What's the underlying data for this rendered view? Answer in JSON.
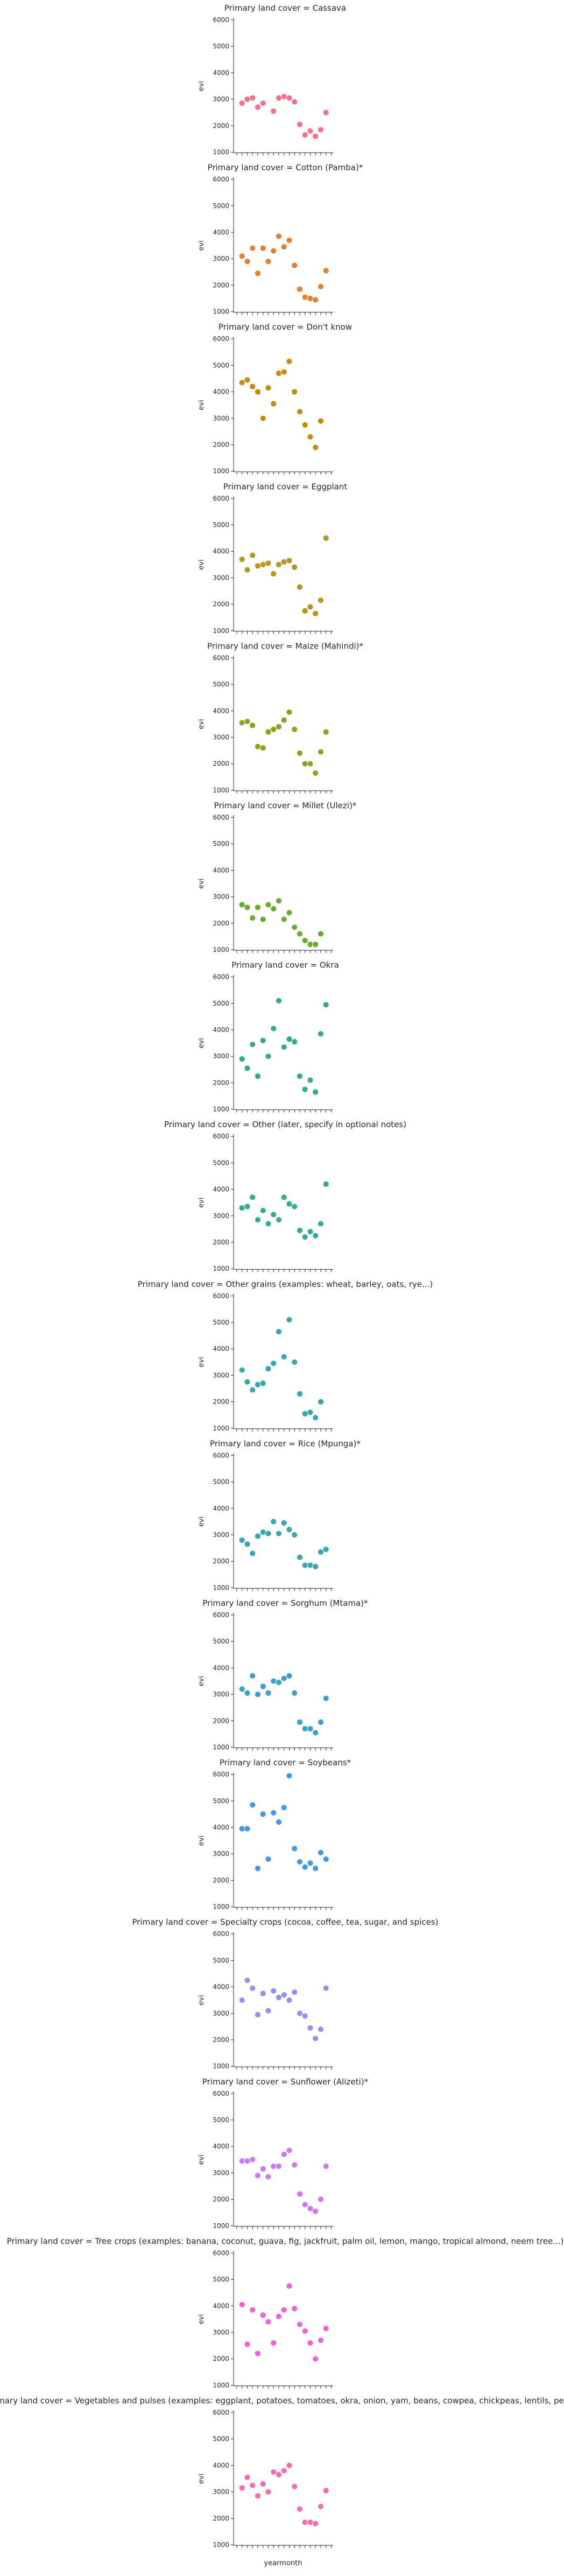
{
  "chart_data": {
    "type": "scatter",
    "facet_prefix": "Primary land cover = ",
    "xlabel": "yearmonth",
    "ylabel": "evi",
    "ylim": [
      1000,
      6000
    ],
    "yticks": [
      1000,
      2000,
      3000,
      4000,
      5000,
      6000
    ],
    "x_tick_count": 19,
    "x_tick_labels": "",
    "legend": "none",
    "grid": false,
    "panels": [
      {
        "category": "Cassava",
        "color": "#f77189",
        "x": [
          1,
          2,
          3,
          4,
          5,
          7,
          8,
          9,
          10,
          11,
          12,
          13,
          14,
          15,
          16,
          17
        ],
        "y": [
          2850,
          3000,
          3050,
          2700,
          2850,
          2550,
          3050,
          3100,
          3050,
          2900,
          2050,
          1650,
          1800,
          1600,
          1850,
          2500
        ]
      },
      {
        "category": "Cotton (Pamba)*",
        "color": "#e5802e",
        "x": [
          1,
          2,
          3,
          4,
          5,
          6,
          7,
          8,
          9,
          10,
          11,
          12,
          13,
          14,
          15,
          16,
          17
        ],
        "y": [
          3100,
          2900,
          3400,
          2450,
          3400,
          2900,
          3300,
          3850,
          3450,
          3700,
          2750,
          1850,
          1550,
          1500,
          1450,
          1950,
          2550
        ]
      },
      {
        "category": "Don't know",
        "color": "#c88a0f",
        "x": [
          1,
          2,
          3,
          4,
          5,
          6,
          7,
          8,
          9,
          10,
          11,
          12,
          13,
          14,
          15,
          16
        ],
        "y": [
          4350,
          4450,
          4200,
          4000,
          3000,
          4150,
          3550,
          4700,
          4750,
          5150,
          4000,
          3250,
          2750,
          2300,
          1900,
          2900
        ]
      },
      {
        "category": "Eggplant",
        "color": "#b5961e",
        "x": [
          1,
          2,
          3,
          4,
          5,
          6,
          7,
          8,
          9,
          10,
          11,
          12,
          13,
          14,
          15,
          16,
          17
        ],
        "y": [
          3700,
          3300,
          3850,
          3450,
          3500,
          3550,
          3150,
          3500,
          3600,
          3650,
          3400,
          2650,
          1750,
          1900,
          1650,
          2150,
          4500
        ]
      },
      {
        "category": "Maize (Mahindi)*",
        "color": "#91a11e",
        "x": [
          1,
          2,
          3,
          4,
          5,
          6,
          7,
          8,
          9,
          10,
          11,
          12,
          13,
          14,
          15,
          16,
          17
        ],
        "y": [
          3550,
          3600,
          3450,
          2650,
          2600,
          3200,
          3300,
          3400,
          3650,
          3950,
          3300,
          2400,
          2000,
          2000,
          1650,
          2450,
          3200
        ]
      },
      {
        "category": "Millet (Ulezi)*",
        "color": "#6aab31",
        "x": [
          1,
          2,
          3,
          4,
          5,
          6,
          7,
          8,
          9,
          10,
          11,
          12,
          13,
          14,
          15,
          16
        ],
        "y": [
          2700,
          2600,
          2200,
          2600,
          2150,
          2700,
          2550,
          2850,
          2150,
          2400,
          1850,
          1600,
          1350,
          1200,
          1200,
          1600
        ]
      },
      {
        "category": "Okra",
        "color": "#36ad77",
        "x": [
          1,
          2,
          3,
          4,
          5,
          6,
          7,
          8,
          9,
          10,
          11,
          12,
          13,
          14,
          15,
          16,
          17
        ],
        "y": [
          2900,
          2550,
          3450,
          2250,
          3600,
          3000,
          4050,
          5100,
          3350,
          3650,
          3550,
          2250,
          1750,
          2100,
          1650,
          3850,
          4950
        ]
      },
      {
        "category": "Other (later, specify in optional notes)",
        "color": "#34ab95",
        "x": [
          1,
          2,
          3,
          4,
          5,
          6,
          7,
          8,
          9,
          10,
          11,
          12,
          13,
          14,
          15,
          16,
          17
        ],
        "y": [
          3300,
          3350,
          3700,
          2850,
          3200,
          2700,
          3050,
          2850,
          3700,
          3450,
          3350,
          2450,
          2200,
          2400,
          2250,
          2700,
          4200
        ]
      },
      {
        "category": "Other grains (examples: wheat, barley, oats, rye...)",
        "color": "#36a9a7",
        "x": [
          1,
          2,
          3,
          4,
          5,
          6,
          7,
          8,
          9,
          10,
          11,
          12,
          13,
          14,
          15,
          16
        ],
        "y": [
          3200,
          2750,
          2450,
          2650,
          2700,
          3250,
          3450,
          4650,
          3700,
          5100,
          3500,
          2300,
          1550,
          1600,
          1400,
          2000
        ]
      },
      {
        "category": "Rice (Mpunga)*",
        "color": "#38a6b7",
        "x": [
          1,
          2,
          3,
          4,
          5,
          6,
          7,
          8,
          9,
          10,
          11,
          12,
          13,
          14,
          15,
          16,
          17
        ],
        "y": [
          2800,
          2650,
          2300,
          2950,
          3100,
          3050,
          3500,
          3050,
          3450,
          3200,
          3000,
          2150,
          1850,
          1850,
          1800,
          2350,
          2450
        ]
      },
      {
        "category": "Sorghum (Mtama)*",
        "color": "#3aa2ca",
        "x": [
          1,
          2,
          3,
          4,
          5,
          6,
          7,
          8,
          9,
          10,
          11,
          12,
          13,
          14,
          15,
          16,
          17
        ],
        "y": [
          3200,
          3050,
          3700,
          3000,
          3300,
          3050,
          3500,
          3450,
          3600,
          3700,
          3050,
          1950,
          1700,
          1700,
          1550,
          1950,
          2850
        ]
      },
      {
        "category": "Soybeans*",
        "color": "#4199e7",
        "x": [
          1,
          2,
          3,
          4,
          5,
          6,
          7,
          8,
          9,
          10,
          11,
          12,
          13,
          14,
          15,
          16,
          17
        ],
        "y": [
          3950,
          3950,
          4850,
          2450,
          4500,
          2800,
          4550,
          4200,
          4750,
          5950,
          3200,
          2700,
          2500,
          2650,
          2450,
          3050,
          2800
        ]
      },
      {
        "category": "Specialty crops (cocoa, coffee, tea, sugar, and spices)",
        "color": "#9193f4",
        "x": [
          1,
          2,
          3,
          4,
          5,
          6,
          7,
          8,
          9,
          10,
          11,
          12,
          13,
          14,
          15,
          16,
          17
        ],
        "y": [
          3500,
          4250,
          3950,
          2950,
          3750,
          3100,
          3850,
          3600,
          3700,
          3500,
          3800,
          3000,
          2900,
          2450,
          2050,
          2400,
          3950
        ]
      },
      {
        "category": "Sunflower (Alizeti)*",
        "color": "#cc79f4",
        "x": [
          1,
          2,
          3,
          4,
          5,
          6,
          7,
          8,
          9,
          10,
          11,
          12,
          13,
          14,
          15,
          16,
          17
        ],
        "y": [
          3450,
          3450,
          3500,
          2900,
          3150,
          2850,
          3250,
          3250,
          3700,
          3850,
          3300,
          2200,
          1800,
          1650,
          1550,
          2000,
          3250
        ]
      },
      {
        "category": "Tree crops (examples: banana, coconut, guava, fig, jackfruit, palm oil, lemon, mango, tropical almond, neem tree...)",
        "color": "#f161dd",
        "x": [
          1,
          2,
          3,
          4,
          5,
          6,
          7,
          8,
          9,
          10,
          11,
          12,
          13,
          14,
          15,
          16,
          17
        ],
        "y": [
          4050,
          2550,
          3850,
          2200,
          3650,
          3400,
          2600,
          3600,
          3850,
          4750,
          3900,
          3300,
          3050,
          2600,
          2000,
          2700,
          3150
        ]
      },
      {
        "category": "Vegetables and pulses (examples: eggplant, potatoes, tomatoes, okra, onion, yam, beans, cowpea, chickpeas, lentils, peas...)",
        "color": "#f56cb4",
        "x": [
          1,
          2,
          3,
          4,
          5,
          6,
          7,
          8,
          9,
          10,
          11,
          12,
          13,
          14,
          15,
          16,
          17
        ],
        "y": [
          3150,
          3550,
          3250,
          2850,
          3300,
          3000,
          3750,
          3650,
          3800,
          4000,
          3200,
          2350,
          1850,
          1850,
          1800,
          2450,
          3050
        ]
      }
    ]
  }
}
